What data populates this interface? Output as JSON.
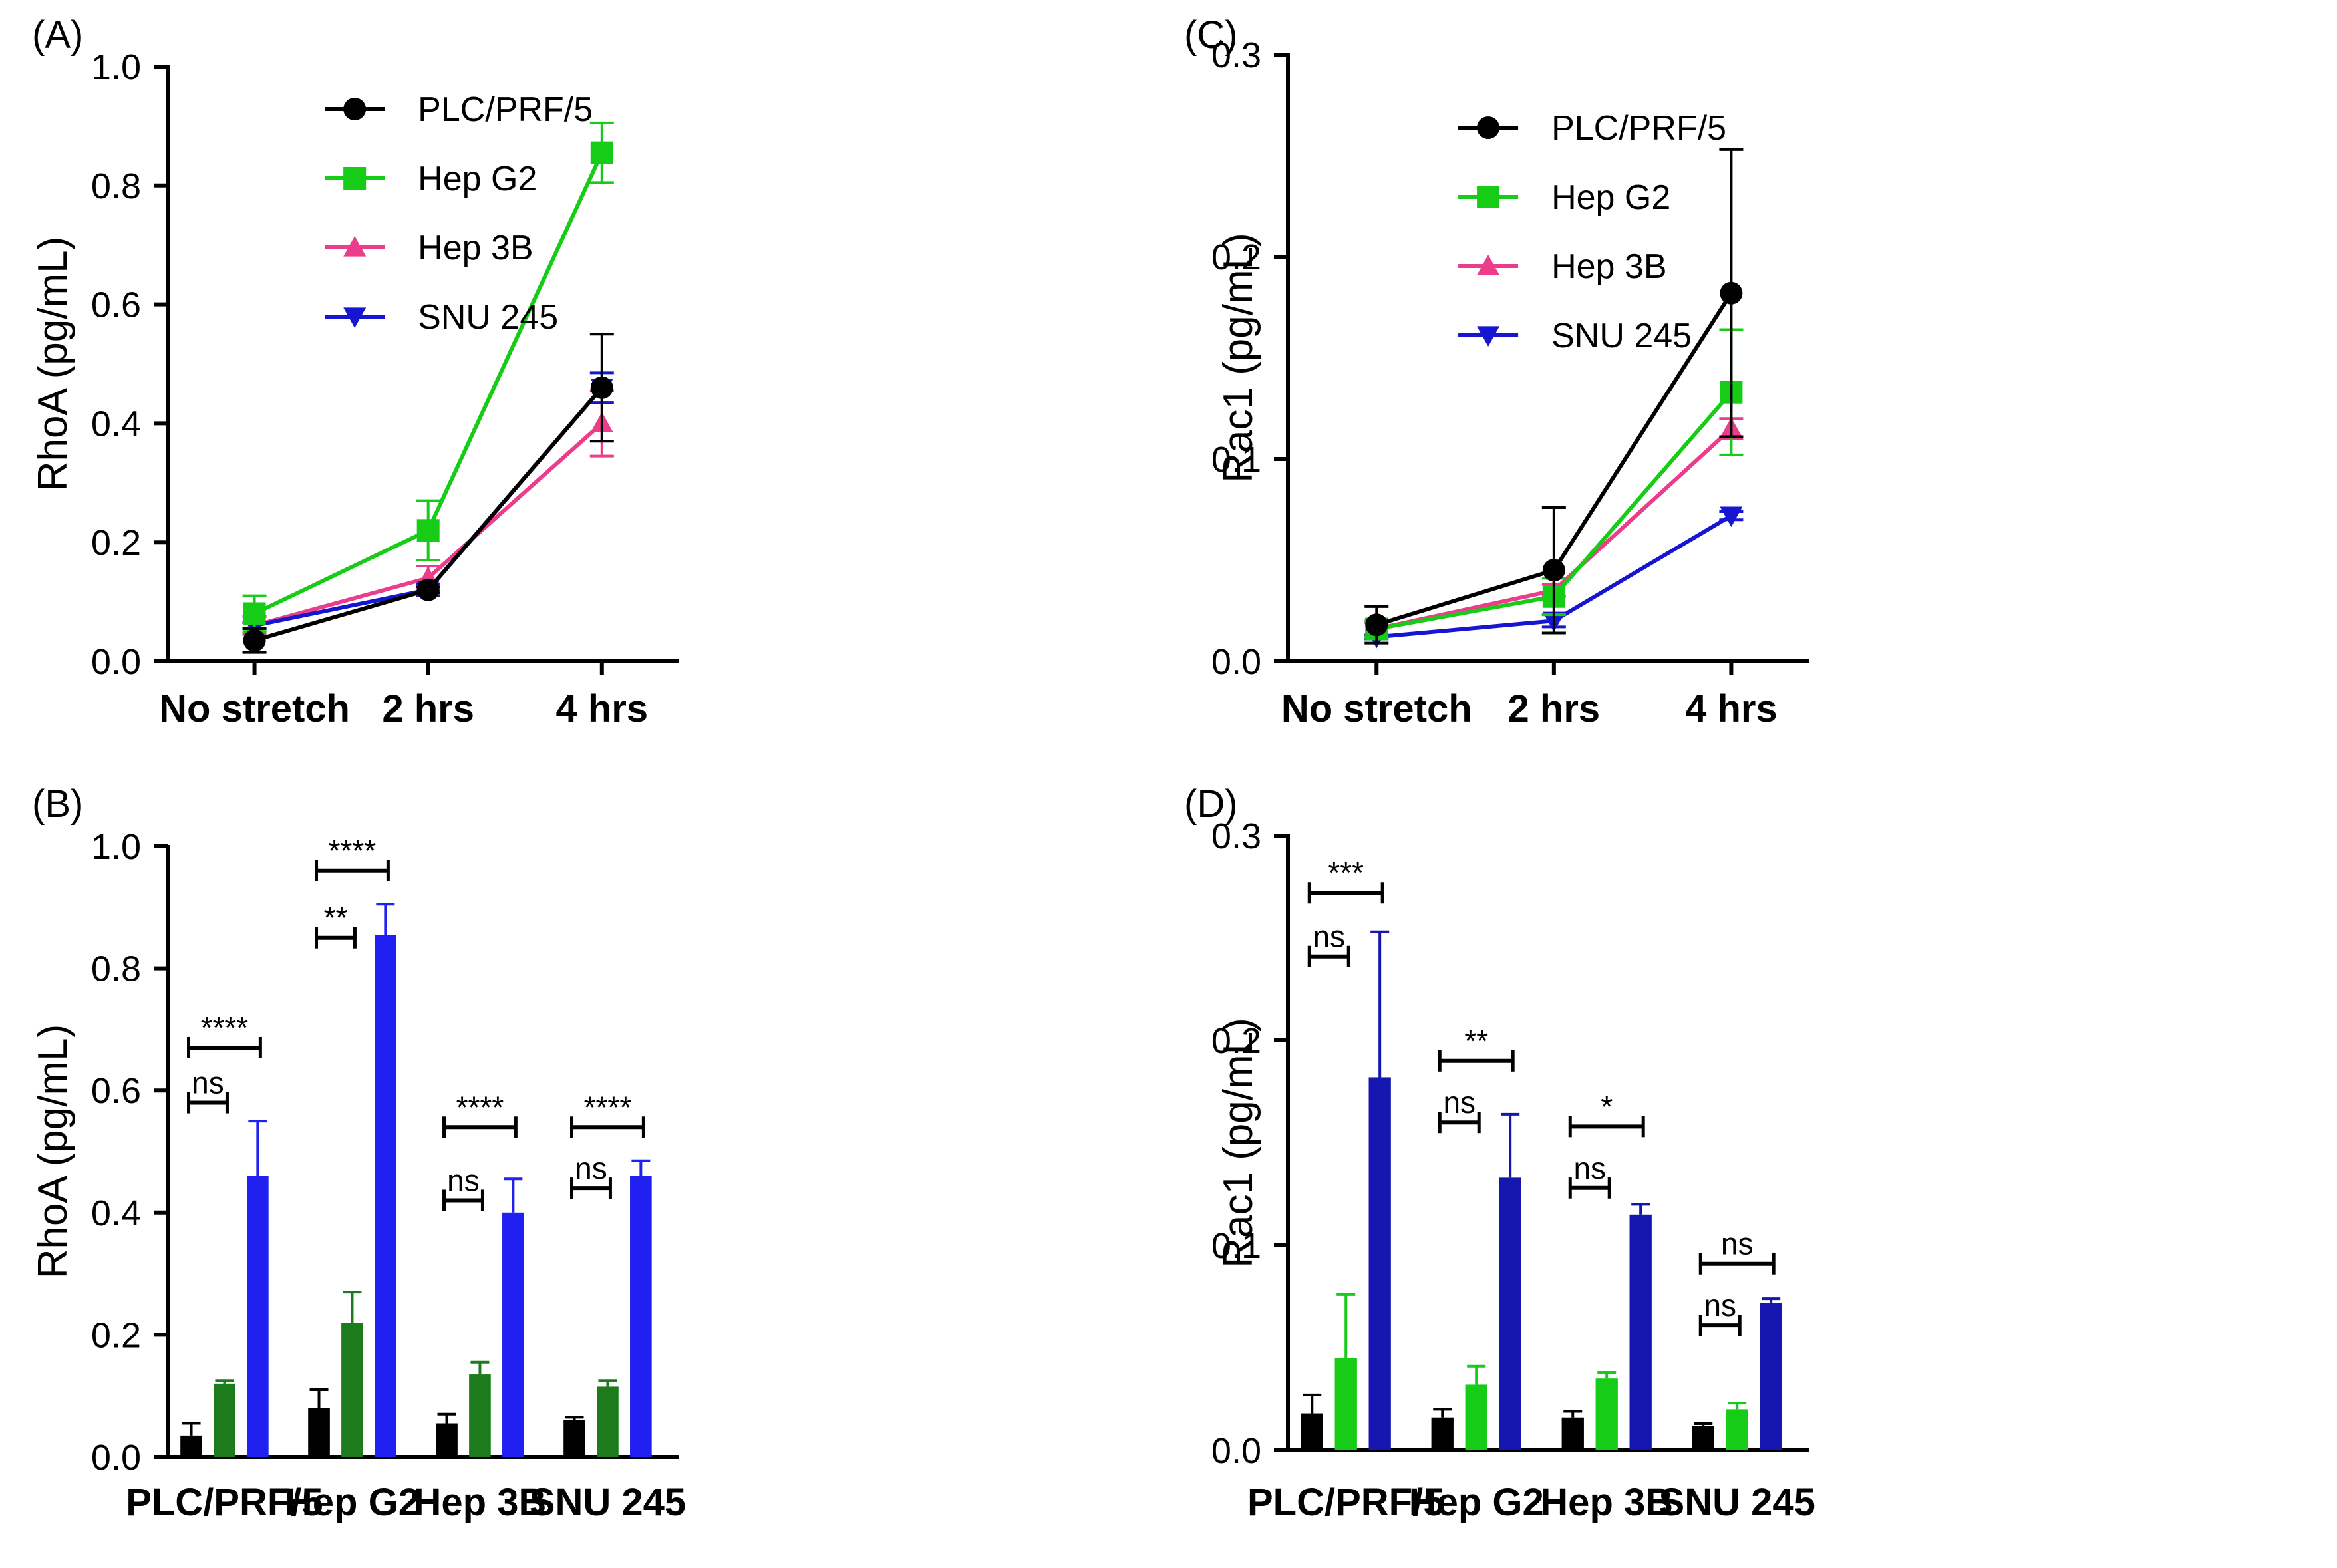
{
  "colors": {
    "PLC/PRF/5": "#000000",
    "Hep G2": "#16cc16",
    "Hep 3B": "#ec3c8c",
    "SNU 245": "#1515d2",
    "bar_mid_B": "#1c7c1c",
    "bar_mid_D": "#16cc16",
    "bar_high_B": "#2020f0",
    "bar_high_D": "#1515b0",
    "bar_low": "#000000"
  },
  "chart_data": [
    {
      "panel": "(A)",
      "type": "line",
      "title": "",
      "xlabel": "",
      "ylabel": "RhoA (pg/mL)",
      "ylim": [
        0,
        1.0
      ],
      "yticks": [
        "0.0",
        "0.2",
        "0.4",
        "0.6",
        "0.8",
        "1.0"
      ],
      "categories": [
        "No stretch",
        "2 hrs",
        "4 hrs"
      ],
      "legend": "top-center",
      "series": [
        {
          "name": "PLC/PRF/5",
          "marker": "circle",
          "values": [
            0.035,
            0.12,
            0.46
          ],
          "errors": [
            0.02,
            0.005,
            0.09
          ]
        },
        {
          "name": "Hep G2",
          "marker": "square",
          "values": [
            0.08,
            0.22,
            0.855
          ],
          "errors": [
            0.03,
            0.05,
            0.05
          ]
        },
        {
          "name": "Hep 3B",
          "marker": "triangle-up",
          "values": [
            0.06,
            0.14,
            0.4
          ],
          "errors": [
            0.015,
            0.02,
            0.055
          ]
        },
        {
          "name": "SNU 245",
          "marker": "triangle-down",
          "values": [
            0.06,
            0.12,
            0.46
          ],
          "errors": [
            0.005,
            0.01,
            0.025
          ]
        }
      ]
    },
    {
      "panel": "(B)",
      "type": "bar",
      "title": "",
      "xlabel": "",
      "ylabel": "RhoA (pg/mL)",
      "ylim": [
        0,
        1.0
      ],
      "yticks": [
        "0.0",
        "0.2",
        "0.4",
        "0.6",
        "0.8",
        "1.0"
      ],
      "categories": [
        "PLC/PRF/5",
        "Hep G2",
        "Hep 3B",
        "SNU 245"
      ],
      "bars_per_group": 3,
      "values": [
        [
          0.035,
          0.12,
          0.46
        ],
        [
          0.08,
          0.22,
          0.855
        ],
        [
          0.055,
          0.135,
          0.4
        ],
        [
          0.06,
          0.115,
          0.46
        ]
      ],
      "errors": [
        [
          0.02,
          0.005,
          0.09
        ],
        [
          0.03,
          0.05,
          0.05
        ],
        [
          0.015,
          0.02,
          0.055
        ],
        [
          0.005,
          0.01,
          0.025
        ]
      ],
      "significance": [
        {
          "group": 0,
          "from": 0,
          "to": 1,
          "label": "ns",
          "level": 0.58
        },
        {
          "group": 0,
          "from": 0,
          "to": 2,
          "label": "****",
          "level": 0.67
        },
        {
          "group": 1,
          "from": 0,
          "to": 1,
          "label": "**",
          "level": 0.85
        },
        {
          "group": 1,
          "from": 0,
          "to": 2,
          "label": "****",
          "level": 0.96
        },
        {
          "group": 2,
          "from": 0,
          "to": 1,
          "label": "ns",
          "level": 0.42
        },
        {
          "group": 2,
          "from": 0,
          "to": 2,
          "label": "****",
          "level": 0.54
        },
        {
          "group": 3,
          "from": 0,
          "to": 1,
          "label": "ns",
          "level": 0.44
        },
        {
          "group": 3,
          "from": 0,
          "to": 2,
          "label": "****",
          "level": 0.54
        }
      ]
    },
    {
      "panel": "(C)",
      "type": "line",
      "title": "",
      "xlabel": "",
      "ylabel": "Rac1 (pg/mL)",
      "ylim": [
        0,
        0.3
      ],
      "yticks": [
        "0.0",
        "0.1",
        "0.2",
        "0.3"
      ],
      "categories": [
        "No stretch",
        "2 hrs",
        "4 hrs"
      ],
      "legend": "top-center",
      "series": [
        {
          "name": "PLC/PRF/5",
          "marker": "circle",
          "values": [
            0.018,
            0.045,
            0.182
          ],
          "errors": [
            0.009,
            0.031,
            0.071
          ]
        },
        {
          "name": "Hep G2",
          "marker": "square",
          "values": [
            0.016,
            0.032,
            0.133
          ],
          "errors": [
            0.004,
            0.009,
            0.031
          ]
        },
        {
          "name": "Hep 3B",
          "marker": "triangle-up",
          "values": [
            0.016,
            0.035,
            0.115
          ],
          "errors": [
            0.003,
            0.003,
            0.005
          ]
        },
        {
          "name": "SNU 245",
          "marker": "triangle-down",
          "values": [
            0.012,
            0.02,
            0.072
          ],
          "errors": [
            0.001,
            0.003,
            0.002
          ]
        }
      ]
    },
    {
      "panel": "(D)",
      "type": "bar",
      "title": "",
      "xlabel": "",
      "ylabel": "Rac1 (pg/mL)",
      "ylim": [
        0,
        0.3
      ],
      "yticks": [
        "0.0",
        "0.1",
        "0.2",
        "0.3"
      ],
      "categories": [
        "PLC/PRF/5",
        "Hep G2",
        "Hep 3B",
        "SNU 245"
      ],
      "bars_per_group": 3,
      "values": [
        [
          0.018,
          0.045,
          0.182
        ],
        [
          0.016,
          0.032,
          0.133
        ],
        [
          0.016,
          0.035,
          0.115
        ],
        [
          0.012,
          0.02,
          0.072
        ]
      ],
      "errors": [
        [
          0.009,
          0.031,
          0.071
        ],
        [
          0.004,
          0.009,
          0.031
        ],
        [
          0.003,
          0.003,
          0.005
        ],
        [
          0.001,
          0.003,
          0.002
        ]
      ],
      "significance": [
        {
          "group": 0,
          "from": 0,
          "to": 1,
          "label": "ns",
          "level": 0.241
        },
        {
          "group": 0,
          "from": 0,
          "to": 2,
          "label": "***",
          "level": 0.272
        },
        {
          "group": 1,
          "from": 0,
          "to": 1,
          "label": "ns",
          "level": 0.16
        },
        {
          "group": 1,
          "from": 0,
          "to": 2,
          "label": "**",
          "level": 0.19
        },
        {
          "group": 2,
          "from": 0,
          "to": 1,
          "label": "ns",
          "level": 0.128
        },
        {
          "group": 2,
          "from": 0,
          "to": 2,
          "label": "*",
          "level": 0.158
        },
        {
          "group": 3,
          "from": 0,
          "to": 1,
          "label": "ns",
          "level": 0.061
        },
        {
          "group": 3,
          "from": 0,
          "to": 2,
          "label": "ns",
          "level": 0.091
        }
      ]
    }
  ]
}
